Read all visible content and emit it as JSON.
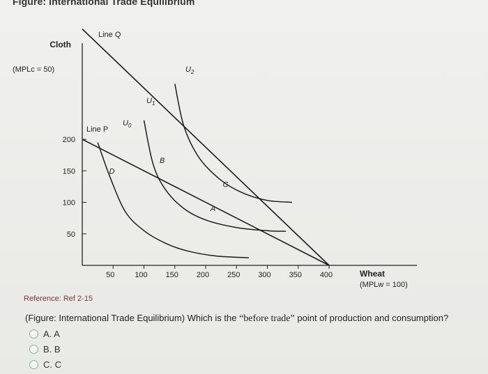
{
  "figure_title": "Figure: International Trade Equilibrium",
  "reference": "Reference: Ref 2-15",
  "question": {
    "prefix": "(Figure: International Trade Equilibrium) Which is the ",
    "quoted": "“before trade”",
    "suffix": " point of production and consumption?"
  },
  "options": [
    {
      "label": "A. A",
      "selected": false
    },
    {
      "label": "B. B",
      "selected": false
    },
    {
      "label": "C. C",
      "selected": false
    }
  ],
  "chart_data": {
    "type": "line",
    "y_axis": {
      "title": "Cloth",
      "subtitle": "(MPLc = 50)",
      "ticks": [
        50,
        100,
        150,
        200
      ]
    },
    "x_axis": {
      "title": "Wheat",
      "subtitle": "(MPLw = 100)",
      "ticks": [
        50,
        100,
        150,
        200,
        250,
        300,
        350,
        400
      ]
    },
    "lines": [
      {
        "name": "Line Q",
        "from": [
          0,
          375
        ],
        "to": [
          400,
          0
        ]
      },
      {
        "name": "Line P",
        "from": [
          0,
          200
        ],
        "to": [
          400,
          0
        ]
      }
    ],
    "indifference_curves": [
      {
        "name": "U0",
        "points": [
          [
            25,
            195
          ],
          [
            45,
            140
          ],
          [
            70,
            85
          ],
          [
            100,
            55
          ],
          [
            135,
            35
          ],
          [
            170,
            23
          ],
          [
            215,
            15
          ],
          [
            270,
            12
          ]
        ]
      },
      {
        "name": "U1",
        "points": [
          [
            100,
            230
          ],
          [
            115,
            160
          ],
          [
            135,
            120
          ],
          [
            165,
            90
          ],
          [
            200,
            72
          ],
          [
            250,
            60
          ],
          [
            300,
            55
          ],
          [
            330,
            54
          ]
        ]
      },
      {
        "name": "U2",
        "points": [
          [
            150,
            288
          ],
          [
            165,
            220
          ],
          [
            190,
            170
          ],
          [
            225,
            135
          ],
          [
            260,
            115
          ],
          [
            300,
            103
          ],
          [
            340,
            100
          ]
        ]
      }
    ],
    "points": [
      {
        "name": "A",
        "x": 210,
        "y": 95
      },
      {
        "name": "B",
        "x": 130,
        "y": 160
      },
      {
        "name": "C",
        "x": 230,
        "y": 120
      },
      {
        "name": "D",
        "x": 48,
        "y": 152
      }
    ]
  }
}
